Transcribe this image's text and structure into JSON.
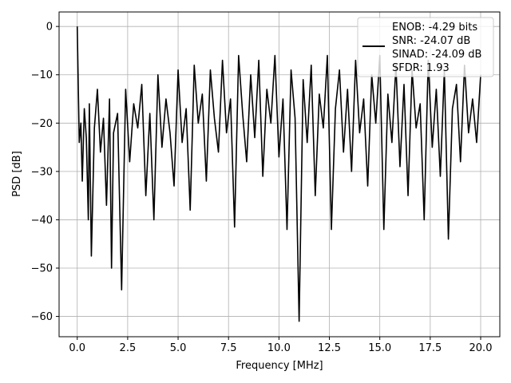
{
  "chart_data": {
    "type": "line",
    "xlabel": "Frequency [MHz]",
    "ylabel": "PSD [dB]",
    "xlim": [
      -0.9,
      20.95
    ],
    "ylim": [
      -64.2,
      3.0
    ],
    "xticks": [
      0.0,
      2.5,
      5.0,
      7.5,
      10.0,
      12.5,
      15.0,
      17.5,
      20.0
    ],
    "xtick_labels": [
      "0.0",
      "2.5",
      "5.0",
      "7.5",
      "10.0",
      "12.5",
      "15.0",
      "17.5",
      "20.0"
    ],
    "yticks": [
      0,
      -10,
      -20,
      -30,
      -40,
      -50,
      -60
    ],
    "ytick_labels": [
      "0",
      "−10",
      "−20",
      "−30",
      "−40",
      "−50",
      "−60"
    ],
    "grid": true,
    "legend_position": "top-right",
    "legend_lines": [
      "ENOB: -4.29 bits",
      "SNR: -24.07 dB",
      "SINAD: -24.09 dB",
      "SFDR: 1.93"
    ],
    "series": [
      {
        "color": "#000000",
        "x": [
          0.0,
          0.05,
          0.1,
          0.18,
          0.25,
          0.35,
          0.45,
          0.55,
          0.6,
          0.7,
          0.85,
          1.0,
          1.15,
          1.3,
          1.45,
          1.6,
          1.7,
          1.8,
          2.0,
          2.2,
          2.4,
          2.6,
          2.8,
          3.0,
          3.2,
          3.4,
          3.6,
          3.8,
          4.0,
          4.2,
          4.4,
          4.6,
          4.8,
          5.0,
          5.2,
          5.4,
          5.6,
          5.8,
          6.0,
          6.2,
          6.4,
          6.6,
          6.8,
          7.0,
          7.2,
          7.4,
          7.6,
          7.8,
          8.0,
          8.2,
          8.4,
          8.6,
          8.8,
          9.0,
          9.2,
          9.4,
          9.6,
          9.8,
          10.0,
          10.2,
          10.4,
          10.6,
          10.8,
          11.0,
          11.2,
          11.4,
          11.6,
          11.8,
          12.0,
          12.2,
          12.4,
          12.6,
          12.8,
          13.0,
          13.2,
          13.4,
          13.6,
          13.8,
          14.0,
          14.2,
          14.4,
          14.6,
          14.8,
          15.0,
          15.2,
          15.4,
          15.6,
          15.8,
          16.0,
          16.2,
          16.4,
          16.6,
          16.8,
          17.0,
          17.2,
          17.4,
          17.6,
          17.8,
          18.0,
          18.2,
          18.4,
          18.6,
          18.8,
          19.0,
          19.2,
          19.4,
          19.6,
          19.8,
          20.0
        ],
        "y": [
          0.0,
          -12.0,
          -24.0,
          -20.0,
          -32.0,
          -17.0,
          -23.0,
          -40.0,
          -16.0,
          -47.5,
          -21.0,
          -13.0,
          -26.0,
          -19.0,
          -37.0,
          -15.0,
          -50.0,
          -22.0,
          -18.0,
          -54.5,
          -13.0,
          -28.0,
          -16.0,
          -21.0,
          -12.0,
          -35.0,
          -18.0,
          -40.0,
          -10.0,
          -25.0,
          -15.0,
          -22.0,
          -33.0,
          -9.0,
          -24.0,
          -17.0,
          -38.0,
          -8.0,
          -20.0,
          -14.0,
          -32.0,
          -9.0,
          -19.0,
          -26.0,
          -7.0,
          -22.0,
          -15.0,
          -41.5,
          -6.0,
          -18.0,
          -28.0,
          -10.0,
          -23.0,
          -7.0,
          -31.0,
          -13.0,
          -20.0,
          -6.0,
          -27.0,
          -15.0,
          -42.0,
          -9.0,
          -19.0,
          -61.0,
          -11.0,
          -24.0,
          -8.0,
          -35.0,
          -14.0,
          -21.0,
          -6.0,
          -42.0,
          -17.0,
          -9.0,
          -26.0,
          -13.0,
          -30.0,
          -7.0,
          -22.0,
          -15.0,
          -33.0,
          -10.0,
          -20.0,
          -6.0,
          -42.0,
          -14.0,
          -24.0,
          -8.0,
          -29.0,
          -12.0,
          -35.0,
          -9.0,
          -21.0,
          -16.0,
          -40.0,
          -7.0,
          -25.0,
          -13.0,
          -31.0,
          -9.0,
          -44.0,
          -17.0,
          -12.0,
          -28.0,
          -8.0,
          -22.0,
          -15.0,
          -24.0,
          -10.0
        ]
      }
    ]
  }
}
